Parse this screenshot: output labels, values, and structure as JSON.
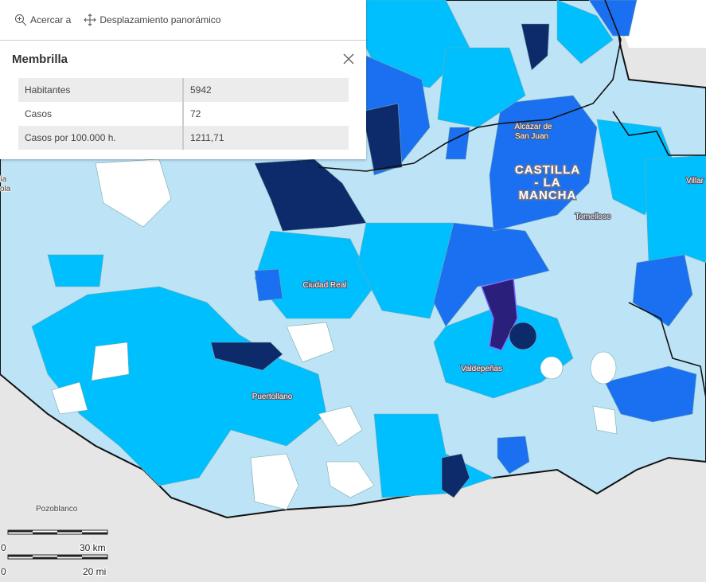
{
  "toolbar": {
    "zoom": "Acercar a",
    "pan": "Desplazamiento panorámico"
  },
  "popup": {
    "title": "Membrilla",
    "table": {
      "rows": [
        [
          "Habitantes",
          "5942"
        ],
        [
          "Casos",
          "72"
        ],
        [
          "Casos por 100.000 h.",
          "1211,71"
        ]
      ]
    }
  },
  "map": {
    "labels": {
      "alcazar": [
        "Alcázar de",
        "San Juan"
      ],
      "region": [
        "CASTILLA",
        "- LA",
        "MANCHA"
      ],
      "tomelloso": "Tomelloso",
      "ciudad_real": "Ciudad Real",
      "valdepenas": "Valdepeñas",
      "puertollano": "Puertollano",
      "pozoblanco": "Pozoblanco",
      "villar": "Villar",
      "cut_left_1": "ía",
      "cut_left_2": "ola"
    }
  },
  "scale": {
    "km": [
      "0",
      "30 km"
    ],
    "mi": [
      "0",
      "20 mi"
    ]
  }
}
